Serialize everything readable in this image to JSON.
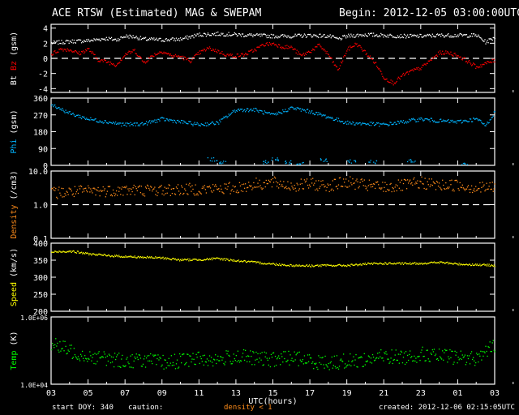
{
  "header": {
    "title": "ACE RTSW (Estimated) MAG & SWEPAM",
    "begin": "Begin: 2012-12-05 03:00:00UTC"
  },
  "footer": {
    "start_doy": "start DOY: 340",
    "caution": "caution:",
    "density_note": "density < 1",
    "created": "created: 2012-12-06 02:15:05UTC"
  },
  "colors": {
    "bt": "#ffffff",
    "bz": "#ff0000",
    "phi": "#00b4ff",
    "density": "#ff8c1a",
    "speed": "#ffff00",
    "temp": "#00ff00",
    "frame": "#ffffff",
    "dash": "#ffffff"
  },
  "chart_data": {
    "type": "scatter",
    "x_axis": {
      "label": "UTC(hours)",
      "ticks": [
        "03",
        "05",
        "07",
        "09",
        "11",
        "13",
        "15",
        "17",
        "19",
        "21",
        "23",
        "01",
        "03"
      ],
      "range_hours": [
        0,
        24
      ]
    },
    "panels": [
      {
        "id": "mag",
        "ylabel_parts": [
          "Bt",
          "Bz",
          "(gsm)"
        ],
        "ylim": [
          -4.5,
          4.5
        ],
        "scale": "linear",
        "yticks": [
          "4",
          "2",
          "0",
          "-2",
          "-4"
        ],
        "ytick_values": [
          4,
          2,
          0,
          -2,
          -4
        ],
        "dashed_line": 0,
        "series": [
          {
            "name": "Bt",
            "color_key": "bt",
            "points": [
              [
                0,
                2.1
              ],
              [
                1,
                2.3
              ],
              [
                2,
                2.4
              ],
              [
                3,
                2.7
              ],
              [
                3.5,
                2.5
              ],
              [
                4,
                3.0
              ],
              [
                4.5,
                2.9
              ],
              [
                5,
                2.6
              ],
              [
                6,
                2.5
              ],
              [
                7,
                2.6
              ],
              [
                8,
                3.2
              ],
              [
                9,
                3.3
              ],
              [
                10,
                3.2
              ],
              [
                11,
                3.1
              ],
              [
                12,
                3.0
              ],
              [
                13,
                3.0
              ],
              [
                14,
                3.1
              ],
              [
                15,
                3.0
              ],
              [
                15.5,
                2.6
              ],
              [
                16,
                3.0
              ],
              [
                17,
                3.2
              ],
              [
                18,
                3.1
              ],
              [
                19,
                3.0
              ],
              [
                20,
                3.0
              ],
              [
                21,
                3.1
              ],
              [
                22,
                3.1
              ],
              [
                23,
                3.1
              ],
              [
                23.5,
                2.2
              ],
              [
                24,
                2.9
              ]
            ]
          },
          {
            "name": "Bz",
            "color_key": "bz",
            "points": [
              [
                0,
                0.6
              ],
              [
                0.5,
                1.3
              ],
              [
                1,
                1.2
              ],
              [
                1.5,
                0.7
              ],
              [
                2,
                1.3
              ],
              [
                2.5,
                -0.1
              ],
              [
                3,
                -0.4
              ],
              [
                3.5,
                -0.8
              ],
              [
                4,
                0.6
              ],
              [
                4.5,
                1.1
              ],
              [
                5,
                -0.5
              ],
              [
                5.5,
                0.5
              ],
              [
                6,
                1.0
              ],
              [
                6.5,
                0.4
              ],
              [
                7,
                0.3
              ],
              [
                7.5,
                -0.3
              ],
              [
                8,
                0.8
              ],
              [
                8.5,
                1.4
              ],
              [
                9,
                1.0
              ],
              [
                9.5,
                0.5
              ],
              [
                10,
                0.4
              ],
              [
                10.5,
                0.6
              ],
              [
                11,
                1.2
              ],
              [
                11.5,
                1.9
              ],
              [
                12,
                2.0
              ],
              [
                12.5,
                1.6
              ],
              [
                13,
                1.5
              ],
              [
                13.5,
                0.4
              ],
              [
                14,
                1.0
              ],
              [
                14.5,
                1.8
              ],
              [
                15,
                0.5
              ],
              [
                15.5,
                -1.5
              ],
              [
                16,
                1.2
              ],
              [
                16.5,
                2.0
              ],
              [
                17,
                0.8
              ],
              [
                17.5,
                -0.5
              ],
              [
                18,
                -2.5
              ],
              [
                18.5,
                -3.2
              ],
              [
                19,
                -2.2
              ],
              [
                19.5,
                -1.6
              ],
              [
                20,
                -1.2
              ],
              [
                20.5,
                -0.2
              ],
              [
                21,
                0.8
              ],
              [
                21.5,
                0.8
              ],
              [
                22,
                0.4
              ],
              [
                22.5,
                -0.3
              ],
              [
                23,
                -1.1
              ],
              [
                23.5,
                -0.6
              ],
              [
                24,
                -0.2
              ]
            ]
          }
        ]
      },
      {
        "id": "phi",
        "ylabel_parts": [
          "Phi",
          "(gsm)"
        ],
        "ylim": [
          0,
          360
        ],
        "scale": "linear",
        "yticks": [
          "360",
          "270",
          "180",
          "90",
          "0"
        ],
        "ytick_values": [
          360,
          270,
          180,
          90,
          0
        ],
        "series": [
          {
            "name": "Phi",
            "color_key": "phi",
            "points": [
              [
                0,
                330
              ],
              [
                1,
                280
              ],
              [
                2,
                250
              ],
              [
                3,
                235
              ],
              [
                4,
                220
              ],
              [
                5,
                225
              ],
              [
                6,
                250
              ],
              [
                7,
                235
              ],
              [
                8,
                220
              ],
              [
                9,
                230
              ],
              [
                10,
                300
              ],
              [
                11,
                300
              ],
              [
                12,
                270
              ],
              [
                13,
                310
              ],
              [
                14,
                290
              ],
              [
                15,
                260
              ],
              [
                16,
                230
              ],
              [
                17,
                225
              ],
              [
                18,
                220
              ],
              [
                19,
                235
              ],
              [
                20,
                250
              ],
              [
                21,
                240
              ],
              [
                22,
                235
              ],
              [
                23,
                250
              ],
              [
                23.5,
                215
              ],
              [
                24,
                290
              ]
            ],
            "low_points": [
              [
                8.7,
                35
              ],
              [
                9.3,
                20
              ],
              [
                11.6,
                20
              ],
              [
                12.1,
                35
              ],
              [
                12.7,
                20
              ],
              [
                13.4,
                10
              ],
              [
                14.7,
                30
              ],
              [
                16.2,
                25
              ],
              [
                17.4,
                20
              ],
              [
                19.5,
                30
              ],
              [
                22.4,
                10
              ]
            ]
          }
        ]
      },
      {
        "id": "density",
        "ylabel_parts": [
          "Density",
          "(/cm3)"
        ],
        "ylim": [
          0.1,
          10
        ],
        "scale": "log",
        "yticks": [
          "10.0",
          "1.0",
          "0.1"
        ],
        "ytick_values": [
          10,
          1,
          0.1
        ],
        "dashed_line": 1,
        "series": [
          {
            "name": "Density",
            "color_key": "density",
            "points": [
              [
                0,
                2.3
              ],
              [
                2,
                2.6
              ],
              [
                4,
                2.8
              ],
              [
                6,
                2.8
              ],
              [
                8,
                3.0
              ],
              [
                10,
                3.2
              ],
              [
                11,
                4.2
              ],
              [
                12,
                4.6
              ],
              [
                13,
                3.7
              ],
              [
                14,
                4.2
              ],
              [
                15,
                3.8
              ],
              [
                16,
                4.8
              ],
              [
                17,
                3.8
              ],
              [
                18,
                3.4
              ],
              [
                19,
                3.8
              ],
              [
                20,
                4.6
              ],
              [
                21,
                3.8
              ],
              [
                22,
                4.0
              ],
              [
                23,
                3.2
              ],
              [
                24,
                3.5
              ]
            ]
          }
        ]
      },
      {
        "id": "speed",
        "ylabel_parts": [
          "Speed",
          "(km/s)"
        ],
        "ylim": [
          200,
          400
        ],
        "scale": "linear",
        "yticks": [
          "400",
          "350",
          "300",
          "250",
          "200"
        ],
        "ytick_values": [
          400,
          350,
          300,
          250,
          200
        ],
        "series": [
          {
            "name": "Speed",
            "color_key": "speed",
            "points": [
              [
                0,
                375
              ],
              [
                1,
                378
              ],
              [
                2,
                370
              ],
              [
                3,
                365
              ],
              [
                4,
                362
              ],
              [
                5,
                360
              ],
              [
                6,
                358
              ],
              [
                7,
                352
              ],
              [
                8,
                353
              ],
              [
                9,
                356
              ],
              [
                10,
                350
              ],
              [
                11,
                345
              ],
              [
                12,
                340
              ],
              [
                13,
                336
              ],
              [
                14,
                335
              ],
              [
                15,
                336
              ],
              [
                16,
                336
              ],
              [
                17,
                340
              ],
              [
                18,
                342
              ],
              [
                19,
                341
              ],
              [
                20,
                342
              ],
              [
                21,
                345
              ],
              [
                22,
                340
              ],
              [
                23,
                338
              ],
              [
                24,
                336
              ]
            ]
          }
        ]
      },
      {
        "id": "temp",
        "ylabel_parts": [
          "Temp",
          "(K)"
        ],
        "ylim": [
          10000,
          1000000
        ],
        "scale": "log",
        "yticks": [
          "1.0E+06",
          "1.0E+04"
        ],
        "ytick_values": [
          1000000,
          10000
        ],
        "series": [
          {
            "name": "Temp",
            "color_key": "temp",
            "points": [
              [
                0,
                160000
              ],
              [
                1,
                100000
              ],
              [
                2,
                70000
              ],
              [
                3,
                60000
              ],
              [
                4,
                50000
              ],
              [
                5,
                55000
              ],
              [
                6,
                45000
              ],
              [
                7,
                52000
              ],
              [
                8,
                60000
              ],
              [
                9,
                55000
              ],
              [
                10,
                70000
              ],
              [
                11,
                60000
              ],
              [
                12,
                55000
              ],
              [
                13,
                65000
              ],
              [
                14,
                50000
              ],
              [
                15,
                45000
              ],
              [
                16,
                50000
              ],
              [
                17,
                55000
              ],
              [
                18,
                70000
              ],
              [
                19,
                65000
              ],
              [
                20,
                80000
              ],
              [
                21,
                70000
              ],
              [
                22,
                65000
              ],
              [
                23,
                60000
              ],
              [
                24,
                140000
              ]
            ]
          }
        ]
      }
    ]
  }
}
